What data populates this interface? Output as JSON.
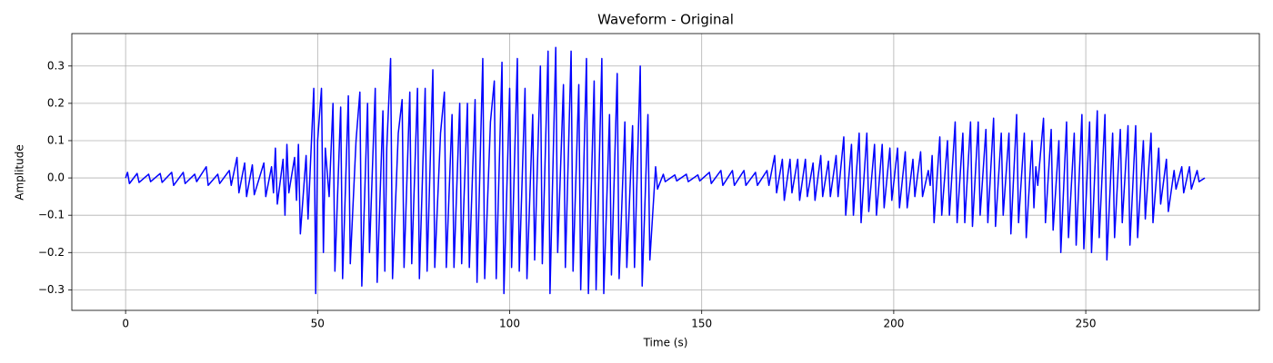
{
  "chart_data": {
    "type": "line",
    "title": "Waveform - Original",
    "x_label": "Time (s)",
    "y_label": "Amplitude",
    "xlim": [
      -14,
      295.2
    ],
    "ylim": [
      -0.355,
      0.387
    ],
    "xticks": [
      0,
      50,
      100,
      150,
      200,
      250
    ],
    "yticks": [
      {
        "value": -0.3,
        "label": "−0.3"
      },
      {
        "value": -0.2,
        "label": "−0.2"
      },
      {
        "value": -0.1,
        "label": "−0.1"
      },
      {
        "value": 0,
        "label": "0.0"
      },
      {
        "value": 0.1,
        "label": "0.1"
      },
      {
        "value": 0.2,
        "label": "0.2"
      },
      {
        "value": 0.3,
        "label": "0.3"
      }
    ],
    "grid": true,
    "series": [
      {
        "color": "#0000ff",
        "x": [
          0,
          0.5,
          1,
          3,
          3.5,
          6,
          6.5,
          9,
          9.5,
          12,
          12.5,
          15,
          15.5,
          18,
          18.5,
          21,
          21.5,
          24,
          24.5,
          27,
          27.5,
          29,
          29.5,
          31,
          31.5,
          33,
          33.5,
          36,
          36.5,
          38,
          38.5,
          39,
          39.5,
          41,
          41.5,
          42,
          42.5,
          44,
          44.5,
          45,
          45.5,
          47,
          47.5,
          49,
          49.5,
          50,
          51,
          51.5,
          52,
          53,
          54,
          54.5,
          56,
          56.5,
          58,
          58.5,
          60,
          61,
          61.5,
          63,
          63.5,
          65,
          65.5,
          67,
          67.5,
          68,
          69,
          69.5,
          71,
          72,
          72.5,
          74,
          74.5,
          76,
          76.5,
          78,
          78.5,
          80,
          80.5,
          82,
          83,
          83.5,
          85,
          85.5,
          87,
          87.5,
          89,
          89.5,
          91,
          91.5,
          93,
          93.5,
          95,
          96,
          96.5,
          98,
          98.5,
          100,
          100.5,
          102,
          102.5,
          104,
          104.5,
          106,
          106.5,
          108,
          108.5,
          110,
          110.5,
          112,
          112.5,
          114,
          114.5,
          116,
          116.5,
          118,
          118.5,
          120,
          120.5,
          122,
          122.5,
          124,
          124.5,
          126,
          126.5,
          128,
          128.5,
          130,
          130.5,
          132,
          132.5,
          134,
          134.5,
          136,
          136.5,
          138,
          138.5,
          140,
          140.5,
          143,
          143.5,
          146,
          146.5,
          149,
          149.5,
          152,
          152.5,
          155,
          155.5,
          158,
          158.5,
          161,
          161.5,
          164,
          164.5,
          167,
          167.5,
          169,
          169.5,
          171,
          171.5,
          173,
          173.5,
          175,
          175.5,
          177,
          177.5,
          179,
          179.5,
          181,
          181.5,
          183,
          183.5,
          185,
          185.5,
          187,
          187.5,
          189,
          189.5,
          191,
          191.5,
          193,
          193.5,
          195,
          195.5,
          197,
          197.5,
          199,
          199.5,
          201,
          201.5,
          203,
          203.5,
          205,
          205.5,
          207,
          207.5,
          209,
          209.5,
          210,
          210.5,
          212,
          212.5,
          214,
          214.5,
          216,
          216.5,
          218,
          218.5,
          220,
          220.5,
          222,
          222.5,
          224,
          224.5,
          226,
          226.5,
          228,
          228.5,
          230,
          230.5,
          232,
          232.5,
          234,
          234.5,
          236,
          236.5,
          237,
          237.5,
          239,
          239.5,
          241,
          241.5,
          243,
          243.5,
          245,
          245.5,
          247,
          247.5,
          249,
          249.5,
          251,
          251.5,
          253,
          253.5,
          255,
          255.5,
          257,
          257.5,
          259,
          259.5,
          261,
          261.5,
          263,
          263.5,
          265,
          265.5,
          267,
          267.5,
          269,
          269.5,
          271,
          271.5,
          273,
          273.5,
          275,
          275.5,
          277,
          277.5,
          279,
          279.5,
          281
        ],
        "values": [
          0,
          0.015,
          -0.015,
          0.012,
          -0.012,
          0.01,
          -0.01,
          0.012,
          -0.012,
          0.015,
          -0.02,
          0.015,
          -0.015,
          0.01,
          -0.01,
          0.03,
          -0.02,
          0.01,
          -0.015,
          0.02,
          -0.02,
          0.055,
          -0.04,
          0.04,
          -0.05,
          0.035,
          -0.045,
          0.04,
          -0.05,
          0.03,
          -0.04,
          0.08,
          -0.07,
          0.05,
          -0.1,
          0.09,
          -0.04,
          0.055,
          -0.06,
          0.09,
          -0.15,
          0.06,
          -0.11,
          0.24,
          -0.31,
          0.1,
          0.24,
          -0.2,
          0.08,
          -0.05,
          0.2,
          -0.25,
          0.19,
          -0.27,
          0.22,
          -0.23,
          0.1,
          0.23,
          -0.29,
          0.2,
          -0.2,
          0.24,
          -0.28,
          0.18,
          -0.25,
          0.08,
          0.32,
          -0.27,
          0.12,
          0.21,
          -0.24,
          0.23,
          -0.23,
          0.24,
          -0.27,
          0.24,
          -0.25,
          0.29,
          -0.24,
          0.12,
          0.23,
          -0.24,
          0.17,
          -0.24,
          0.2,
          -0.23,
          0.2,
          -0.24,
          0.21,
          -0.28,
          0.32,
          -0.27,
          0.15,
          0.26,
          -0.27,
          0.31,
          -0.31,
          0.24,
          -0.24,
          0.32,
          -0.25,
          0.24,
          -0.27,
          0.17,
          -0.22,
          0.3,
          -0.23,
          0.34,
          -0.31,
          0.35,
          -0.2,
          0.25,
          -0.24,
          0.34,
          -0.25,
          0.25,
          -0.3,
          0.32,
          -0.31,
          0.26,
          -0.3,
          0.32,
          -0.31,
          0.17,
          -0.26,
          0.28,
          -0.27,
          0.15,
          -0.24,
          0.14,
          -0.24,
          0.3,
          -0.29,
          0.17,
          -0.22,
          0.03,
          -0.03,
          0.01,
          -0.01,
          0.008,
          -0.008,
          0.01,
          -0.01,
          0.008,
          -0.008,
          0.015,
          -0.015,
          0.02,
          -0.02,
          0.02,
          -0.02,
          0.02,
          -0.02,
          0.015,
          -0.02,
          0.02,
          -0.02,
          0.06,
          -0.04,
          0.05,
          -0.06,
          0.05,
          -0.04,
          0.05,
          -0.06,
          0.05,
          -0.05,
          0.04,
          -0.06,
          0.06,
          -0.05,
          0.045,
          -0.05,
          0.06,
          -0.05,
          0.11,
          -0.1,
          0.09,
          -0.1,
          0.12,
          -0.12,
          0.12,
          -0.09,
          0.09,
          -0.1,
          0.09,
          -0.08,
          0.08,
          -0.06,
          0.08,
          -0.08,
          0.07,
          -0.08,
          0.05,
          -0.05,
          0.07,
          -0.05,
          0.02,
          -0.02,
          0.06,
          -0.12,
          0.11,
          -0.1,
          0.1,
          -0.1,
          0.15,
          -0.12,
          0.12,
          -0.12,
          0.15,
          -0.13,
          0.15,
          -0.1,
          0.13,
          -0.12,
          0.16,
          -0.13,
          0.12,
          -0.1,
          0.12,
          -0.15,
          0.17,
          -0.12,
          0.12,
          -0.16,
          0.1,
          -0.08,
          0.03,
          -0.02,
          0.16,
          -0.12,
          0.13,
          -0.14,
          0.1,
          -0.2,
          0.15,
          -0.16,
          0.12,
          -0.18,
          0.17,
          -0.19,
          0.15,
          -0.2,
          0.18,
          -0.16,
          0.17,
          -0.22,
          0.12,
          -0.16,
          0.13,
          -0.12,
          0.14,
          -0.18,
          0.14,
          -0.16,
          0.1,
          -0.11,
          0.12,
          -0.12,
          0.08,
          -0.07,
          0.05,
          -0.09,
          0.02,
          -0.03,
          0.03,
          -0.04,
          0.03,
          -0.03,
          0.02,
          -0.01,
          0
        ]
      }
    ]
  }
}
